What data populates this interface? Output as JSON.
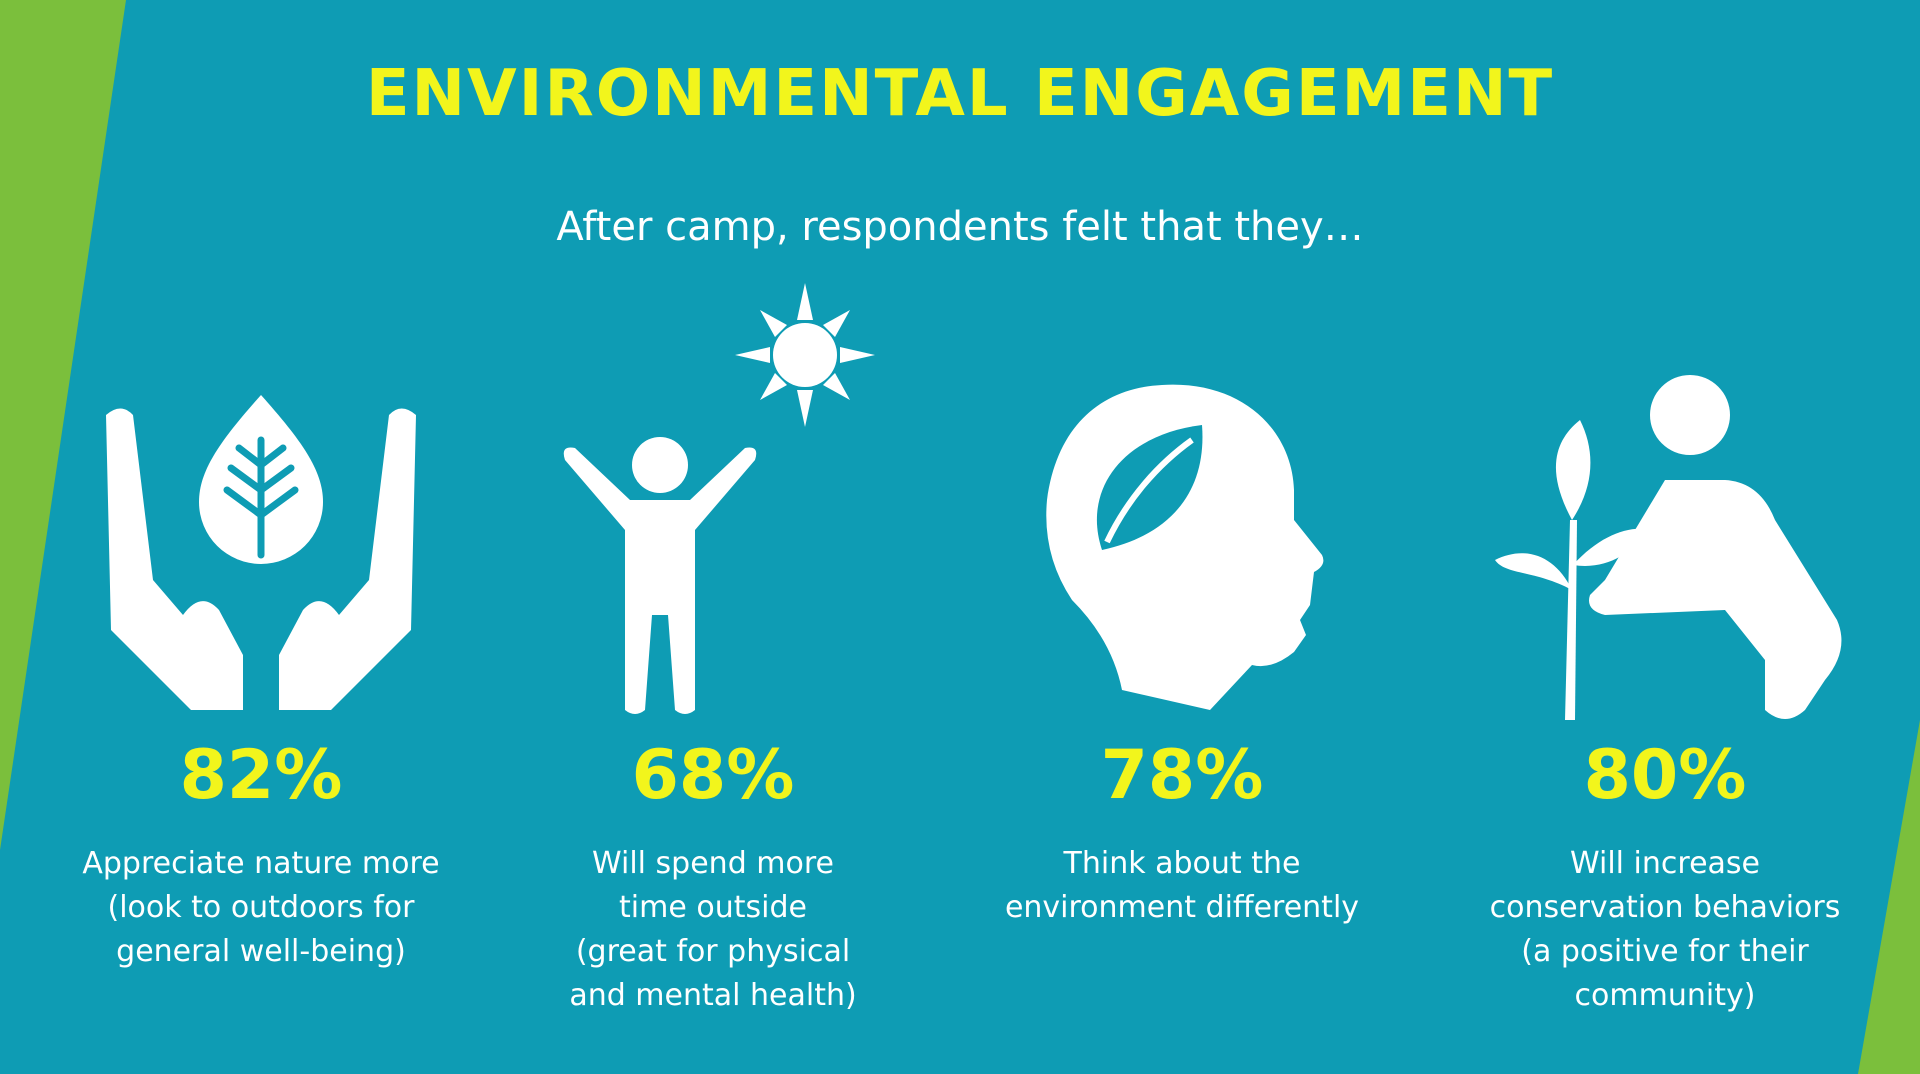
{
  "header": {
    "title": "ENVIRONMENTAL ENGAGEMENT",
    "subtitle": "After camp, respondents felt that they…"
  },
  "items": [
    {
      "value": "82%",
      "lines": [
        "Appreciate nature more",
        "(look to outdoors for",
        "general well-being)"
      ]
    },
    {
      "value": "68%",
      "lines": [
        "Will spend more",
        "time outside",
        "(great for physical",
        "and mental health)"
      ]
    },
    {
      "value": "78%",
      "lines": [
        "Think about the",
        "environment differently"
      ]
    },
    {
      "value": "80%",
      "lines": [
        "Will increase",
        "conservation behaviors",
        "(a positive for their",
        "community)"
      ]
    }
  ]
}
